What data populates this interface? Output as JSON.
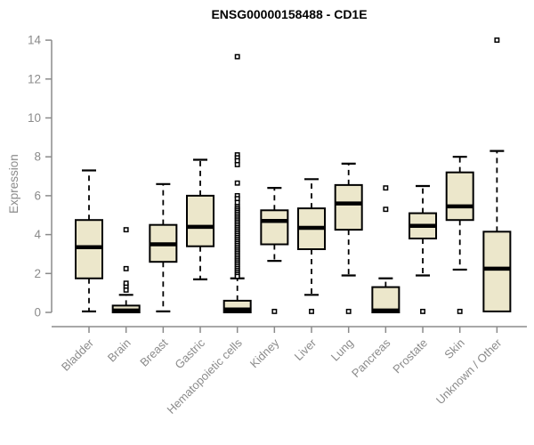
{
  "header": {
    "title": "ENSG00000158488 - CD1E"
  },
  "axes": {
    "ylabel": "Expression",
    "yticks": [
      0,
      2,
      4,
      6,
      8,
      10,
      12,
      14
    ]
  },
  "colors": {
    "box_fill": "#ece7cb",
    "box_border": "#000000",
    "median": "#000000",
    "whisker": "#000000",
    "outlier_fill": "#ffffff",
    "outlier_border": "#000000",
    "axis": "#8b8b8b",
    "tick_label": "#8b8b8b",
    "title": "#000000"
  },
  "chart_data": {
    "type": "boxplot",
    "title": "ENSG00000158488 - CD1E",
    "xlabel": "",
    "ylabel": "Expression",
    "ylim": [
      0,
      14
    ],
    "yticks": [
      0,
      2,
      4,
      6,
      8,
      10,
      12,
      14
    ],
    "grid": false,
    "legend": false,
    "categories": [
      "Bladder",
      "Brain",
      "Breast",
      "Gastric",
      "Hematopoietic cells",
      "Kidney",
      "Liver",
      "Lung",
      "Pancreas",
      "Prostate",
      "Skin",
      "Unknown / Other"
    ],
    "series": [
      {
        "name": "Bladder",
        "min": 0.05,
        "q1": 1.75,
        "median": 3.35,
        "q3": 4.75,
        "max": 7.3,
        "outliers": []
      },
      {
        "name": "Brain",
        "min": 0,
        "q1": 0,
        "median": 0.1,
        "q3": 0.35,
        "max": 0.9,
        "outliers": [
          1.15,
          1.35,
          1.5,
          2.25,
          4.25
        ]
      },
      {
        "name": "Breast",
        "min": 0.05,
        "q1": 2.6,
        "median": 3.5,
        "q3": 4.5,
        "max": 6.6,
        "outliers": []
      },
      {
        "name": "Gastric",
        "min": 1.7,
        "q1": 3.4,
        "median": 4.4,
        "q3": 6.0,
        "max": 7.85,
        "outliers": []
      },
      {
        "name": "Hematopoietic cells",
        "min": 0,
        "q1": 0,
        "median": 0.15,
        "q3": 0.6,
        "max": 1.75,
        "outliers": [
          13.15,
          8.1,
          7.95,
          7.8,
          7.6,
          6.65,
          6.0,
          5.85,
          5.65,
          5.45,
          5.35,
          5.25,
          5.15,
          5.05,
          4.95,
          4.85,
          4.75,
          4.65,
          4.55,
          4.45,
          4.35,
          4.25,
          4.15,
          4.05,
          3.95,
          3.85,
          3.75,
          3.65,
          3.55,
          3.45,
          3.35,
          3.25,
          3.15,
          3.05,
          2.95,
          2.85,
          2.75,
          2.65,
          2.55,
          2.45,
          2.35,
          2.25,
          2.15,
          2.05,
          1.95,
          1.85
        ]
      },
      {
        "name": "Kidney",
        "min": 2.65,
        "q1": 3.5,
        "median": 4.7,
        "q3": 5.25,
        "max": 6.4,
        "outliers": [
          0.05
        ]
      },
      {
        "name": "Liver",
        "min": 0.9,
        "q1": 3.25,
        "median": 4.35,
        "q3": 5.35,
        "max": 6.85,
        "outliers": [
          0.05
        ]
      },
      {
        "name": "Lung",
        "min": 1.9,
        "q1": 4.25,
        "median": 5.6,
        "q3": 6.55,
        "max": 7.65,
        "outliers": [
          0.05
        ]
      },
      {
        "name": "Pancreas",
        "min": 0,
        "q1": 0,
        "median": 0.1,
        "q3": 1.3,
        "max": 1.75,
        "outliers": [
          5.3,
          6.4
        ]
      },
      {
        "name": "Prostate",
        "min": 1.9,
        "q1": 3.8,
        "median": 4.45,
        "q3": 5.1,
        "max": 6.5,
        "outliers": [
          0.05
        ]
      },
      {
        "name": "Skin",
        "min": 2.2,
        "q1": 4.75,
        "median": 5.45,
        "q3": 7.2,
        "max": 8.0,
        "outliers": [
          0.05
        ]
      },
      {
        "name": "Unknown / Other",
        "min": 0.05,
        "q1": 0.05,
        "median": 2.25,
        "q3": 4.15,
        "max": 8.3,
        "outliers": [
          14.0
        ]
      }
    ]
  }
}
